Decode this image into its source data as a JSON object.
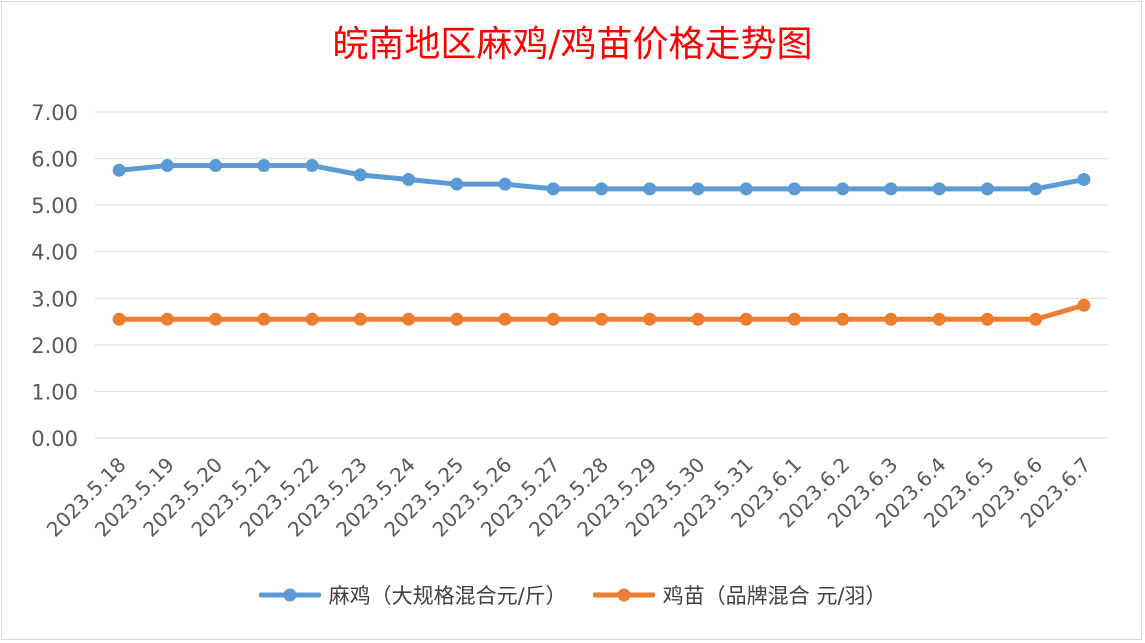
{
  "chart_data": {
    "type": "line",
    "title": "皖南地区麻鸡/鸡苗价格走势图",
    "categories": [
      "2023.5.18",
      "2023.5.19",
      "2023.5.20",
      "2023.5.21",
      "2023.5.22",
      "2023.5.23",
      "2023.5.24",
      "2023.5.25",
      "2023.5.26",
      "2023.5.27",
      "2023.5.28",
      "2023.5.29",
      "2023.5.30",
      "2023.5.31",
      "2023.6.1",
      "2023.6.2",
      "2023.6.3",
      "2023.6.4",
      "2023.6.5",
      "2023.6.6",
      "2023.6.7"
    ],
    "series": [
      {
        "name": "麻鸡（大规格混合元/斤）",
        "color": "#5b9bd5",
        "values": [
          5.75,
          5.85,
          5.85,
          5.85,
          5.85,
          5.65,
          5.55,
          5.45,
          5.45,
          5.35,
          5.35,
          5.35,
          5.35,
          5.35,
          5.35,
          5.35,
          5.35,
          5.35,
          5.35,
          5.35,
          5.55
        ]
      },
      {
        "name": "鸡苗（品牌混合 元/羽）",
        "color": "#ed7d31",
        "values": [
          2.55,
          2.55,
          2.55,
          2.55,
          2.55,
          2.55,
          2.55,
          2.55,
          2.55,
          2.55,
          2.55,
          2.55,
          2.55,
          2.55,
          2.55,
          2.55,
          2.55,
          2.55,
          2.55,
          2.55,
          2.85
        ]
      }
    ],
    "y_ticks": [
      "0.00",
      "1.00",
      "2.00",
      "3.00",
      "4.00",
      "5.00",
      "6.00",
      "7.00"
    ],
    "ylim": [
      0,
      7
    ],
    "grid": true,
    "legend_position": "bottom"
  }
}
